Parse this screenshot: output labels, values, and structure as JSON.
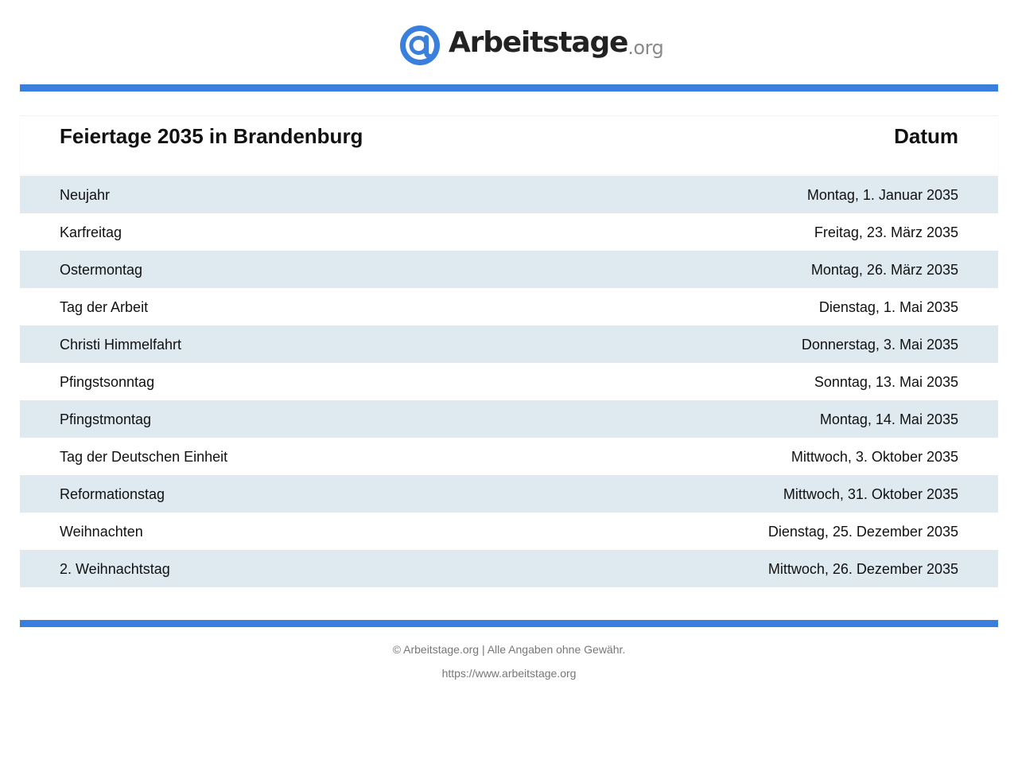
{
  "header": {
    "logo_name": "Arbeitstage",
    "logo_tld": ".org",
    "logo_icon": "at-sign-logo-icon",
    "brand_color": "#3a7fdc"
  },
  "table": {
    "title": "Feiertage 2035 in Brandenburg",
    "date_header": "Datum",
    "row_shade_color": "#dfe9f0",
    "rows": [
      {
        "name": "Neujahr",
        "date": "Montag, 1. Januar 2035"
      },
      {
        "name": "Karfreitag",
        "date": "Freitag, 23. März 2035"
      },
      {
        "name": "Ostermontag",
        "date": "Montag, 26. März 2035"
      },
      {
        "name": "Tag der Arbeit",
        "date": "Dienstag, 1. Mai 2035"
      },
      {
        "name": "Christi Himmelfahrt",
        "date": "Donnerstag, 3. Mai 2035"
      },
      {
        "name": "Pfingstsonntag",
        "date": "Sonntag, 13. Mai 2035"
      },
      {
        "name": "Pfingstmontag",
        "date": "Montag, 14. Mai 2035"
      },
      {
        "name": "Tag der Deutschen Einheit",
        "date": "Mittwoch, 3. Oktober 2035"
      },
      {
        "name": "Reformationstag",
        "date": "Mittwoch, 31. Oktober 2035"
      },
      {
        "name": "Weihnachten",
        "date": "Dienstag, 25. Dezember 2035"
      },
      {
        "name": "2. Weihnachtstag",
        "date": "Mittwoch, 26. Dezember 2035"
      }
    ]
  },
  "footer": {
    "copyright": "© Arbeitstage.org | Alle Angaben ohne Gewähr.",
    "url": "https://www.arbeitstage.org"
  }
}
